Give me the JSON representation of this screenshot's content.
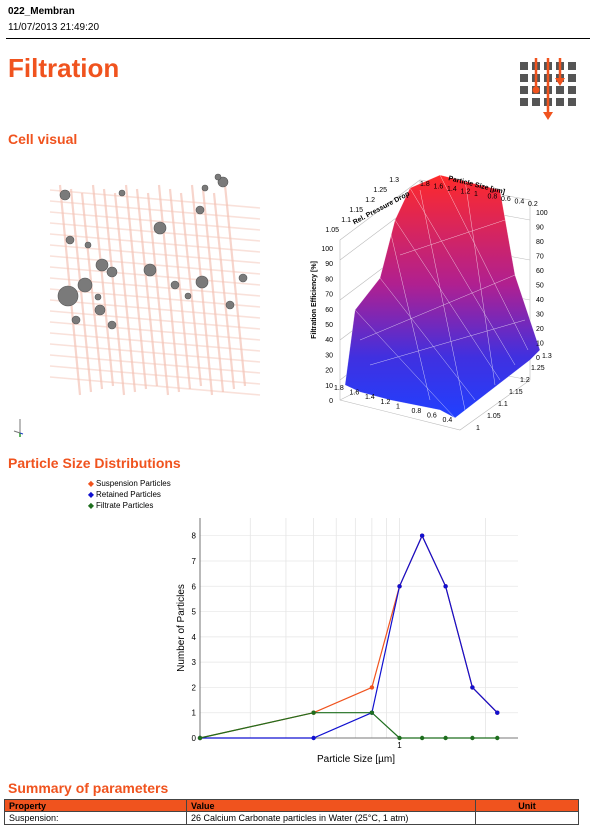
{
  "header": {
    "name": "022_Membran",
    "datetime": "11/07/2013 21:49:20"
  },
  "title": "Filtration",
  "icons": {
    "logo": "filtration-logo-icon",
    "axis": "axis-triad-icon"
  },
  "sections": {
    "cell_visual": "Cell visual",
    "psd": "Particle Size Distributions",
    "summary": "Summary of parameters"
  },
  "colors": {
    "accent": "#f0531e",
    "suspension": "#f0531e",
    "retained": "#1010d0",
    "filtrate": "#1e6e1e"
  },
  "surface_plot": {
    "z_label": "Filtration Efficiency [%]",
    "x_label": "Particle Size [µm]",
    "y_label": "Rel. Pressure Drop",
    "z_ticks_left": [
      "0",
      "10",
      "20",
      "30",
      "40",
      "50",
      "60",
      "70",
      "80",
      "90",
      "100"
    ],
    "z_ticks_right": [
      "0",
      "10",
      "20",
      "30",
      "40",
      "50",
      "60",
      "70",
      "80",
      "90",
      "100"
    ],
    "top_size_ticks": [
      "1.8",
      "1.6",
      "1.4",
      "1.2",
      "1",
      "0.8",
      "0.6",
      "0.4",
      "0.2"
    ],
    "top_pressure_ticks": [
      "1.3",
      "1.25",
      "1.2",
      "1.15",
      "1.1",
      "1.05"
    ],
    "bottom_size_ticks": [
      "1.8",
      "1.6",
      "1.4",
      "1.2",
      "1",
      "0.8",
      "0.6",
      "0.4"
    ],
    "bottom_pressure_ticks": [
      "1.3",
      "1.25",
      "1.2",
      "1.15",
      "1.1",
      "1.05",
      "1"
    ]
  },
  "legend": [
    "Suspension Particles",
    "Retained Particles",
    "Filtrate Particles"
  ],
  "chart_data": {
    "type": "line",
    "xlabel": "Particle Size [µm]",
    "ylabel": "Number of Particles",
    "x_scale": "log",
    "xlim": [
      0.2,
      2.6
    ],
    "ylim": [
      0,
      8.7
    ],
    "y_ticks": [
      0,
      1,
      2,
      3,
      4,
      5,
      6,
      7,
      8
    ],
    "x_tick_labels": [
      {
        "value": 1,
        "label": "1"
      }
    ],
    "grid": true,
    "legend_position": "top-left",
    "series": [
      {
        "name": "Suspension Particles",
        "color": "#f0531e",
        "x": [
          0.2,
          0.5,
          0.8,
          1.0,
          1.2,
          1.45,
          1.8,
          2.2
        ],
        "y": [
          0,
          1,
          2,
          6,
          8,
          6,
          2,
          1
        ]
      },
      {
        "name": "Retained Particles",
        "color": "#1010d0",
        "x": [
          0.2,
          0.5,
          0.8,
          1.0,
          1.2,
          1.45,
          1.8,
          2.2
        ],
        "y": [
          0,
          0,
          1,
          6,
          8,
          6,
          2,
          1
        ]
      },
      {
        "name": "Filtrate Particles",
        "color": "#1e6e1e",
        "x": [
          0.2,
          0.5,
          0.8,
          1.0,
          1.2,
          1.45,
          1.8,
          2.2
        ],
        "y": [
          0,
          1,
          1,
          0,
          0,
          0,
          0,
          0
        ]
      }
    ]
  },
  "table": {
    "headers": [
      "Property",
      "Value",
      "Unit"
    ],
    "rows": [
      [
        "Suspension:",
        "26 Calcium Carbonate particles in Water (25°C, 1 atm)",
        ""
      ]
    ]
  }
}
